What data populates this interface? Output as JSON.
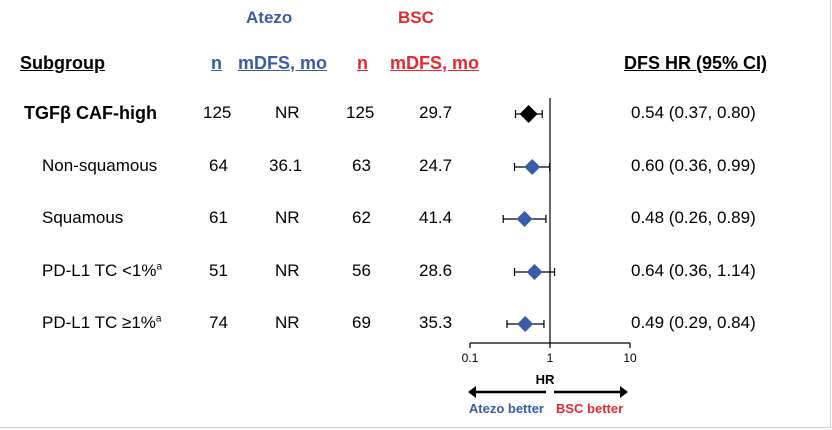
{
  "headers": {
    "atezo_group": "Atezo",
    "bsc_group": "BSC",
    "subgroup": "Subgroup",
    "atezo_n": "n",
    "atezo_mdfs": "mDFS, mo",
    "bsc_n": "n",
    "bsc_mdfs": "mDFS, mo",
    "hr_ci": "DFS HR (95% CI)"
  },
  "rows": [
    {
      "label": "TGFβ CAF-high",
      "superscript": "",
      "bold": true,
      "atezo_n": "125",
      "atezo_mdfs": "NR",
      "bsc_n": "125",
      "bsc_mdfs": "29.7",
      "hr_text": "0.54 (0.37, 0.80)"
    },
    {
      "label": "Non-squamous",
      "superscript": "",
      "bold": false,
      "atezo_n": "64",
      "atezo_mdfs": "36.1",
      "bsc_n": "63",
      "bsc_mdfs": "24.7",
      "hr_text": "0.60 (0.36, 0.99)"
    },
    {
      "label": "Squamous",
      "superscript": "",
      "bold": false,
      "atezo_n": "61",
      "atezo_mdfs": "NR",
      "bsc_n": "62",
      "bsc_mdfs": "41.4",
      "hr_text": "0.48 (0.26, 0.89)"
    },
    {
      "label": "PD-L1 TC <1%",
      "superscript": "a",
      "bold": false,
      "atezo_n": "51",
      "atezo_mdfs": "NR",
      "bsc_n": "56",
      "bsc_mdfs": "28.6",
      "hr_text": "0.64 (0.36, 1.14)"
    },
    {
      "label": "PD-L1 TC ≥1%",
      "superscript": "a",
      "bold": false,
      "atezo_n": "74",
      "atezo_mdfs": "NR",
      "bsc_n": "69",
      "bsc_mdfs": "35.3",
      "hr_text": "0.49 (0.29, 0.84)"
    }
  ],
  "axis": {
    "label": "HR",
    "left_direction": "Atezo better",
    "right_direction": "BSC better"
  },
  "colors": {
    "atezo": "#3a5ba7",
    "bsc": "#e8282e",
    "overall_marker": "#000000",
    "subgroup_marker": "#3a5ba7"
  },
  "chart_data": {
    "type": "forest",
    "xlabel": "HR",
    "xscale": "log",
    "xlim": [
      0.1,
      10
    ],
    "xticks": [
      "0.1",
      "1",
      "10"
    ],
    "reference_line": 1,
    "points": [
      {
        "label": "TGFβ CAF-high",
        "hr": 0.54,
        "lo": 0.37,
        "hi": 0.8,
        "marker": "overall"
      },
      {
        "label": "Non-squamous",
        "hr": 0.6,
        "lo": 0.36,
        "hi": 0.99,
        "marker": "subgroup"
      },
      {
        "label": "Squamous",
        "hr": 0.48,
        "lo": 0.26,
        "hi": 0.89,
        "marker": "subgroup"
      },
      {
        "label": "PD-L1 TC <1%",
        "hr": 0.64,
        "lo": 0.36,
        "hi": 1.14,
        "marker": "subgroup"
      },
      {
        "label": "PD-L1 TC ≥1%",
        "hr": 0.49,
        "lo": 0.29,
        "hi": 0.84,
        "marker": "subgroup"
      }
    ]
  }
}
